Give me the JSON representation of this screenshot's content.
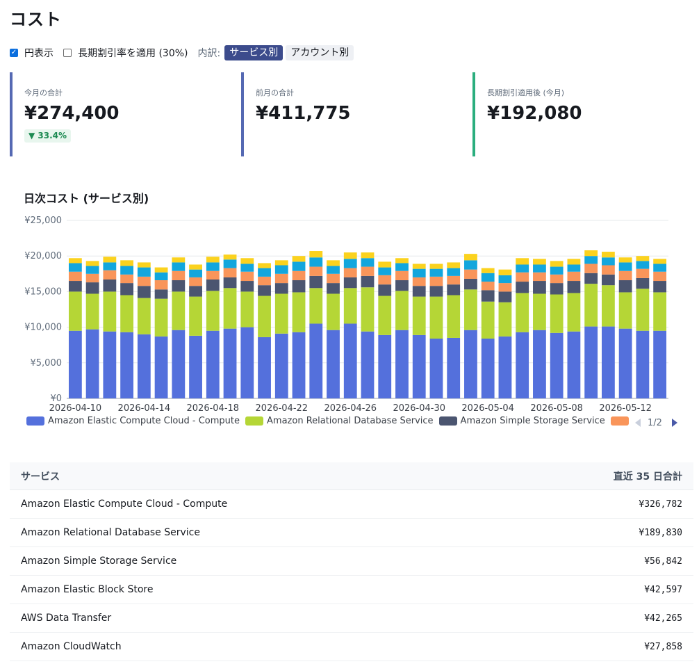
{
  "page": {
    "title": "コスト"
  },
  "controls": {
    "yen_display": {
      "label": "円表示",
      "checked": true
    },
    "discount": {
      "label": "長期割引率を適用 (30%)",
      "checked": false
    },
    "breakdown_label": "内訳:",
    "breakdown_options": [
      {
        "label": "サービス別",
        "active": true
      },
      {
        "label": "アカウント別",
        "active": false
      }
    ]
  },
  "kpis": [
    {
      "label": "今月の合計",
      "value": "¥274,400",
      "badge": "▼ 33.4%",
      "accent": "#5569b3"
    },
    {
      "label": "前月の合計",
      "value": "¥411,775",
      "accent": "#5569b3"
    },
    {
      "label": "長期割引適用後 (今月)",
      "value": "¥192,080",
      "accent": "#2bae7e"
    }
  ],
  "chart": {
    "title": "日次コスト (サービス別)"
  },
  "chart_data": {
    "type": "bar",
    "stacked": true,
    "ylim": [
      0,
      25000
    ],
    "yticks": [
      "¥0",
      "¥5,000",
      "¥10,000",
      "¥15,000",
      "¥20,000",
      "¥25,000"
    ],
    "ytick_values": [
      0,
      5000,
      10000,
      15000,
      20000,
      25000
    ],
    "grid": true,
    "legend_position": "bottom",
    "xtick_labels": [
      "2026-04-10",
      "2026-04-14",
      "2026-04-18",
      "2026-04-22",
      "2026-04-26",
      "2026-04-30",
      "2026-05-04",
      "2026-05-08",
      "2026-05-12"
    ],
    "xtick_categories": [
      "2026-04-10",
      "2026-04-14",
      "2026-04-18",
      "2026-04-22",
      "2026-04-26",
      "2026-04-30",
      "2026-05-04",
      "2026-05-08",
      "2026-05-12"
    ],
    "categories": [
      "2026-04-10",
      "2026-04-11",
      "2026-04-12",
      "2026-04-13",
      "2026-04-14",
      "2026-04-15",
      "2026-04-16",
      "2026-04-17",
      "2026-04-18",
      "2026-04-19",
      "2026-04-20",
      "2026-04-21",
      "2026-04-22",
      "2026-04-23",
      "2026-04-24",
      "2026-04-25",
      "2026-04-26",
      "2026-04-27",
      "2026-04-28",
      "2026-04-29",
      "2026-04-30",
      "2026-05-01",
      "2026-05-02",
      "2026-05-03",
      "2026-05-04",
      "2026-05-05",
      "2026-05-06",
      "2026-05-07",
      "2026-05-08",
      "2026-05-09",
      "2026-05-10",
      "2026-05-11",
      "2026-05-12",
      "2026-05-13",
      "2026-05-14"
    ],
    "series": [
      {
        "name": "Amazon Elastic Compute Cloud - Compute",
        "color": "#5470dc",
        "values": [
          9500,
          9700,
          9400,
          9300,
          9000,
          8700,
          9600,
          8800,
          9500,
          9800,
          10000,
          8600,
          9100,
          9300,
          10500,
          9600,
          10500,
          9400,
          8900,
          9600,
          8900,
          8400,
          8500,
          9600,
          8400,
          8700,
          9300,
          9600,
          9200,
          9400,
          10100,
          10100,
          9800,
          9500,
          9500
        ]
      },
      {
        "name": "Amazon Relational Database Service",
        "color": "#b5d636",
        "values": [
          5500,
          5000,
          5600,
          5200,
          5100,
          5300,
          5400,
          5500,
          5600,
          5700,
          5000,
          5800,
          5600,
          5600,
          5000,
          5100,
          5000,
          6200,
          5500,
          5500,
          5400,
          5900,
          6000,
          5700,
          5200,
          4800,
          5500,
          5100,
          5400,
          5400,
          6000,
          5800,
          5100,
          5900,
          5400
        ]
      },
      {
        "name": "Amazon Simple Storage Service",
        "color": "#4b5570",
        "values": [
          1500,
          1600,
          1700,
          1700,
          1700,
          1300,
          1600,
          1500,
          1600,
          1500,
          1500,
          1500,
          1500,
          1700,
          1700,
          1500,
          1500,
          1600,
          1600,
          1500,
          1500,
          1500,
          1500,
          1500,
          1600,
          1500,
          1600,
          1800,
          1600,
          1700,
          1500,
          1500,
          1700,
          1500,
          1600
        ]
      },
      {
        "name": "Amazon Elastic Block Store",
        "color": "#f9955a",
        "values": [
          1300,
          1200,
          1300,
          1200,
          1300,
          1300,
          1300,
          1200,
          1200,
          1300,
          1300,
          1200,
          1300,
          1300,
          1300,
          1300,
          1300,
          1300,
          1300,
          1300,
          1200,
          1300,
          1200,
          1300,
          1200,
          1200,
          1300,
          1200,
          1200,
          1300,
          1300,
          1300,
          1300,
          1300,
          1300
        ]
      },
      {
        "name": "AWS Data Transfer",
        "color": "#12a6dd",
        "values": [
          1200,
          1100,
          1100,
          1200,
          1300,
          1100,
          1200,
          1100,
          1200,
          1200,
          1100,
          1200,
          1200,
          1300,
          1300,
          1100,
          1300,
          1200,
          1100,
          1100,
          1200,
          1100,
          1100,
          1300,
          1200,
          1100,
          1100,
          1100,
          1100,
          1000,
          1100,
          1100,
          1200,
          1100,
          1100
        ]
      },
      {
        "name": "Amazon CloudWatch",
        "color": "#fbd21e",
        "values": [
          700,
          700,
          800,
          800,
          700,
          700,
          700,
          700,
          800,
          700,
          800,
          700,
          700,
          800,
          900,
          800,
          900,
          800,
          800,
          700,
          700,
          700,
          800,
          900,
          700,
          800,
          900,
          800,
          800,
          800,
          800,
          800,
          700,
          700,
          700
        ]
      }
    ],
    "legend_page": "1/2"
  },
  "table": {
    "header_service": "サービス",
    "header_total": "直近 35 日合計",
    "rows": [
      {
        "service": "Amazon Elastic Compute Cloud - Compute",
        "total": "¥326,782"
      },
      {
        "service": "Amazon Relational Database Service",
        "total": "¥189,830"
      },
      {
        "service": "Amazon Simple Storage Service",
        "total": "¥56,842"
      },
      {
        "service": "Amazon Elastic Block Store",
        "total": "¥42,597"
      },
      {
        "service": "AWS Data Transfer",
        "total": "¥42,265"
      },
      {
        "service": "Amazon CloudWatch",
        "total": "¥27,858"
      }
    ]
  }
}
